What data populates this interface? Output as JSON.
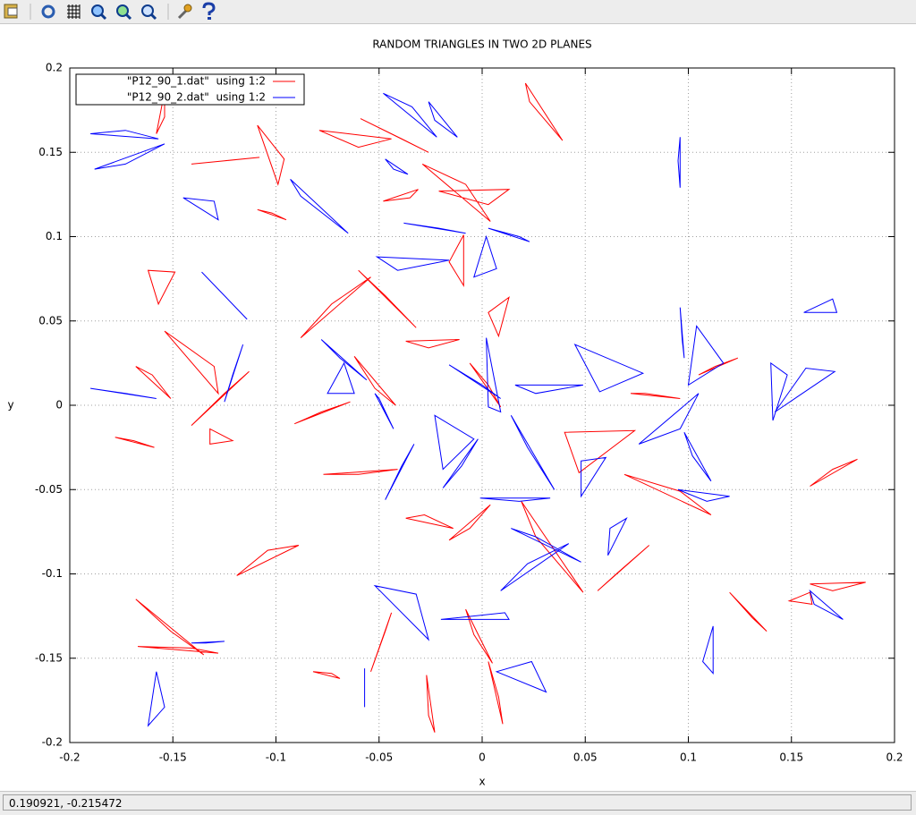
{
  "chart_data": {
    "type": "line",
    "title": "RANDOM TRIANGLES IN TWO 2D PLANES",
    "xlabel": "x",
    "ylabel": "y",
    "xlim": [
      -0.2,
      0.2
    ],
    "ylim": [
      -0.2,
      0.2
    ],
    "xticks": [
      -0.2,
      -0.15,
      -0.1,
      -0.05,
      0,
      0.05,
      0.1,
      0.15,
      0.2
    ],
    "yticks": [
      -0.2,
      -0.15,
      -0.1,
      -0.05,
      0,
      0.05,
      0.1,
      0.15,
      0.2
    ],
    "grid": true,
    "legend": "top-left",
    "series": [
      {
        "name": "\"P12_90_1.dat\"  using 1:2",
        "color": "#ff0000",
        "x": [
          0.021,
          0.039,
          0.023,
          null,
          -0.158,
          -0.154,
          -0.154,
          null,
          -0.141,
          -0.108,
          -0.125,
          null,
          -0.109,
          -0.096,
          -0.099,
          null,
          -0.079,
          -0.044,
          -0.06,
          null,
          -0.059,
          -0.026,
          -0.039,
          null,
          -0.029,
          0.004,
          -0.008,
          null,
          -0.048,
          -0.031,
          -0.035,
          null,
          -0.021,
          0.013,
          0.003,
          null,
          -0.109,
          -0.095,
          -0.102,
          null,
          -0.016,
          -0.009,
          -0.009,
          null,
          -0.06,
          -0.032,
          -0.047,
          null,
          -0.088,
          -0.054,
          -0.073,
          null,
          -0.037,
          -0.011,
          -0.026,
          null,
          0.003,
          0.013,
          0.008,
          null,
          -0.162,
          -0.157,
          -0.149,
          null,
          -0.154,
          -0.128,
          -0.13,
          null,
          -0.168,
          -0.151,
          -0.16,
          null,
          -0.141,
          -0.113,
          -0.125,
          null,
          -0.178,
          -0.159,
          -0.169,
          null,
          -0.132,
          -0.121,
          -0.132,
          null,
          -0.062,
          -0.042,
          -0.052,
          null,
          -0.091,
          -0.064,
          -0.078,
          null,
          -0.006,
          0.009,
          0.003,
          null,
          0.04,
          0.074,
          0.047,
          null,
          0.069,
          0.111,
          0.096,
          null,
          0.079,
          0.096,
          0.072,
          null,
          0.105,
          0.124,
          0.113,
          null,
          0.159,
          0.182,
          0.17,
          null,
          -0.077,
          -0.041,
          -0.06,
          null,
          -0.037,
          -0.014,
          -0.028,
          null,
          -0.016,
          0.004,
          -0.006,
          null,
          0.019,
          0.049,
          0.026,
          null,
          0.056,
          0.081,
          0.066,
          null,
          -0.119,
          -0.089,
          -0.104,
          null,
          -0.168,
          -0.135,
          -0.151,
          null,
          -0.167,
          -0.128,
          -0.141,
          null,
          -0.054,
          -0.044,
          -0.047,
          null,
          -0.008,
          0.005,
          -0.004,
          null,
          0.003,
          0.01,
          0.008,
          null,
          -0.027,
          -0.023,
          -0.026,
          null,
          0.12,
          0.138,
          0.131,
          null,
          0.159,
          0.186,
          0.17,
          null,
          0.149,
          0.16,
          0.159,
          null,
          -0.082,
          -0.069,
          -0.073
        ],
        "values": [
          0.191,
          0.157,
          0.18,
          null,
          0.161,
          0.186,
          0.171,
          null,
          0.143,
          0.147,
          0.145,
          null,
          0.166,
          0.146,
          0.131,
          null,
          0.163,
          0.158,
          0.153,
          null,
          0.17,
          0.15,
          0.158,
          null,
          0.143,
          0.109,
          0.131,
          null,
          0.121,
          0.128,
          0.123,
          null,
          0.127,
          0.128,
          0.119,
          null,
          0.116,
          0.11,
          0.114,
          null,
          0.085,
          0.101,
          0.071,
          null,
          0.08,
          0.046,
          0.065,
          null,
          0.04,
          0.076,
          0.06,
          null,
          0.038,
          0.039,
          0.034,
          null,
          0.055,
          0.064,
          0.041,
          null,
          0.08,
          0.06,
          0.079,
          null,
          0.044,
          0.007,
          0.023,
          null,
          0.023,
          0.004,
          0.018,
          null,
          -0.012,
          0.02,
          0.007,
          null,
          -0.019,
          -0.025,
          -0.021,
          null,
          -0.014,
          -0.021,
          -0.023,
          null,
          0.029,
          0.0,
          0.01,
          null,
          -0.011,
          0.002,
          -0.004,
          null,
          0.025,
          -0.001,
          0.012,
          null,
          -0.016,
          -0.015,
          -0.04,
          null,
          -0.041,
          -0.065,
          -0.051,
          null,
          0.007,
          0.004,
          0.007,
          null,
          0.018,
          0.028,
          0.023,
          null,
          -0.048,
          -0.032,
          -0.038,
          null,
          -0.041,
          -0.038,
          -0.041,
          null,
          -0.067,
          -0.073,
          -0.065,
          null,
          -0.08,
          -0.059,
          -0.073,
          null,
          -0.057,
          -0.111,
          -0.078,
          null,
          -0.11,
          -0.083,
          -0.099,
          null,
          -0.101,
          -0.083,
          -0.086,
          null,
          -0.115,
          -0.148,
          -0.134,
          null,
          -0.143,
          -0.147,
          -0.144,
          null,
          -0.158,
          -0.123,
          -0.134,
          null,
          -0.121,
          -0.153,
          -0.136,
          null,
          -0.152,
          -0.189,
          -0.173,
          null,
          -0.16,
          -0.194,
          -0.184,
          null,
          -0.111,
          -0.134,
          -0.126,
          null,
          -0.106,
          -0.105,
          -0.11,
          null,
          -0.116,
          -0.118,
          -0.111,
          null,
          -0.158,
          -0.162,
          -0.159
        ]
      },
      {
        "name": "\"P12_90_2.dat\"  using 1:2",
        "color": "#0000ff",
        "x": [
          -0.19,
          -0.173,
          -0.157,
          null,
          -0.188,
          -0.154,
          -0.173,
          null,
          -0.145,
          -0.13,
          -0.128,
          null,
          -0.136,
          -0.114,
          -0.125,
          null,
          -0.093,
          -0.065,
          -0.088,
          null,
          -0.048,
          -0.022,
          -0.034,
          null,
          -0.026,
          -0.012,
          -0.023,
          null,
          -0.047,
          -0.036,
          -0.043,
          null,
          -0.038,
          -0.008,
          -0.021,
          null,
          -0.051,
          -0.016,
          -0.041,
          null,
          0.003,
          0.023,
          0.018,
          null,
          0.002,
          -0.004,
          0.007,
          null,
          0.096,
          0.096,
          0.095,
          null,
          0.156,
          0.17,
          0.172,
          null,
          0.096,
          0.098,
          0.097,
          null,
          0.045,
          0.078,
          0.057,
          null,
          0.104,
          0.117,
          0.1,
          null,
          0.076,
          0.105,
          0.096,
          null,
          0.098,
          0.111,
          0.102,
          null,
          0.095,
          0.12,
          0.109,
          null,
          0.142,
          0.171,
          0.157,
          null,
          0.14,
          0.141,
          0.148,
          null,
          -0.19,
          -0.158,
          -0.173,
          null,
          -0.125,
          -0.116,
          -0.121,
          null,
          -0.078,
          -0.056,
          -0.069,
          null,
          -0.075,
          -0.062,
          -0.067,
          null,
          -0.052,
          -0.043,
          -0.05,
          null,
          -0.047,
          -0.033,
          -0.039,
          null,
          -0.023,
          -0.004,
          -0.019,
          null,
          -0.019,
          -0.002,
          -0.01,
          null,
          -0.016,
          0.009,
          0.0,
          null,
          0.002,
          0.009,
          0.003,
          null,
          0.016,
          0.049,
          0.026,
          null,
          0.014,
          0.035,
          0.022,
          null,
          0.048,
          0.06,
          0.048,
          null,
          -0.001,
          0.033,
          0.018,
          null,
          0.014,
          0.048,
          0.026,
          null,
          0.009,
          0.042,
          0.022,
          null,
          0.061,
          0.07,
          0.062,
          null,
          -0.052,
          -0.026,
          -0.032,
          null,
          -0.02,
          0.013,
          0.011,
          null,
          0.007,
          0.031,
          0.024,
          null,
          -0.162,
          -0.158,
          -0.154,
          null,
          -0.141,
          -0.125,
          -0.134,
          null,
          0.107,
          0.112,
          0.112,
          null,
          0.159,
          0.175,
          0.161,
          null,
          -0.057,
          -0.057,
          -0.057
        ],
        "values": [
          0.161,
          0.163,
          0.158,
          null,
          0.14,
          0.155,
          0.143,
          null,
          0.123,
          0.121,
          0.11,
          null,
          0.079,
          0.051,
          0.065,
          null,
          0.134,
          0.102,
          0.124,
          null,
          0.185,
          0.159,
          0.177,
          null,
          0.18,
          0.159,
          0.169,
          null,
          0.146,
          0.137,
          0.14,
          null,
          0.108,
          0.102,
          0.105,
          null,
          0.088,
          0.086,
          0.08,
          null,
          0.105,
          0.097,
          0.1,
          null,
          0.1,
          0.076,
          0.081,
          null,
          0.159,
          0.129,
          0.145,
          null,
          0.055,
          0.063,
          0.055,
          null,
          0.058,
          0.028,
          0.039,
          null,
          0.036,
          0.019,
          0.008,
          null,
          0.047,
          0.025,
          0.012,
          null,
          -0.023,
          0.007,
          -0.014,
          null,
          -0.016,
          -0.045,
          -0.03,
          null,
          -0.05,
          -0.054,
          -0.057,
          null,
          -0.004,
          0.02,
          0.022,
          null,
          0.025,
          -0.009,
          0.018,
          null,
          0.01,
          0.004,
          0.007,
          null,
          0.002,
          0.036,
          0.018,
          null,
          0.039,
          0.015,
          0.028,
          null,
          0.007,
          0.007,
          0.025,
          null,
          0.007,
          -0.014,
          0.004,
          null,
          -0.056,
          -0.023,
          -0.036,
          null,
          -0.006,
          -0.02,
          -0.038,
          null,
          -0.049,
          -0.02,
          -0.036,
          null,
          0.024,
          0.004,
          0.012,
          null,
          0.04,
          -0.004,
          -0.001,
          null,
          0.012,
          0.012,
          0.007,
          null,
          -0.006,
          -0.05,
          -0.025,
          null,
          -0.033,
          -0.031,
          -0.054,
          null,
          -0.055,
          -0.055,
          -0.057,
          null,
          -0.073,
          -0.093,
          -0.078,
          null,
          -0.11,
          -0.082,
          -0.094,
          null,
          -0.089,
          -0.067,
          -0.073,
          null,
          -0.107,
          -0.139,
          -0.112,
          null,
          -0.127,
          -0.127,
          -0.123,
          null,
          -0.158,
          -0.17,
          -0.152,
          null,
          -0.19,
          -0.158,
          -0.179,
          null,
          -0.141,
          -0.14,
          -0.141,
          null,
          -0.152,
          -0.131,
          -0.159,
          null,
          -0.11,
          -0.127,
          -0.118,
          null,
          -0.156,
          -0.179,
          -0.168
        ]
      }
    ]
  },
  "status_bar": "0.190921, -0.215472"
}
